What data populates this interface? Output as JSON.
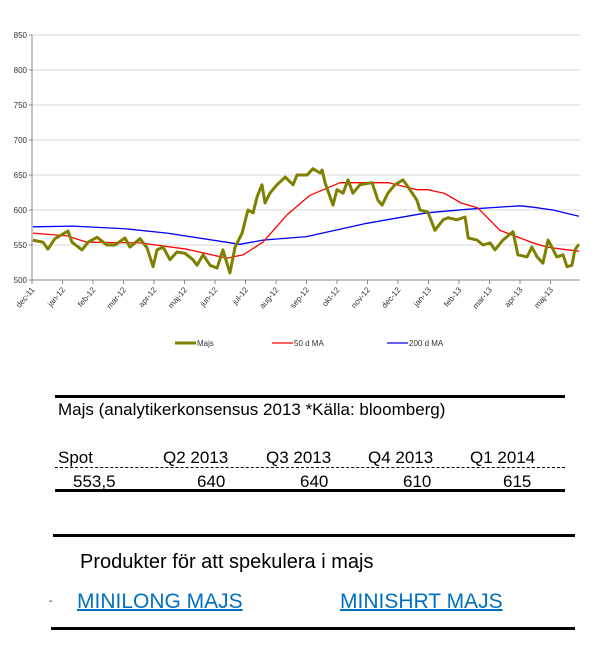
{
  "chart_data": {
    "type": "line",
    "title": "",
    "xlabel": "",
    "ylabel": "",
    "ylim": [
      500,
      850
    ],
    "yticks": [
      500,
      550,
      600,
      650,
      700,
      750,
      800,
      850
    ],
    "x_unit": "months since dec-11",
    "xtick_labels": [
      "dec-11",
      "jan-12",
      "feb-12",
      "mar-12",
      "apr-12",
      "maj-12",
      "jun-12",
      "jul-12",
      "aug-12",
      "sep-12",
      "okt-12",
      "nov-12",
      "dec-12",
      "jan-13",
      "feb-13",
      "mar-13",
      "apr-13",
      "maj-13"
    ],
    "grid": true,
    "legend_position": "bottom",
    "series": [
      {
        "name": "Majs",
        "color": "#808000",
        "width": 3,
        "x": [
          0.03,
          0.36,
          0.52,
          0.75,
          1.18,
          1.31,
          1.64,
          1.84,
          2.13,
          2.46,
          2.72,
          3.05,
          3.21,
          3.54,
          3.77,
          3.97,
          4.1,
          4.3,
          4.52,
          4.75,
          5.02,
          5.28,
          5.41,
          5.61,
          5.84,
          6.07,
          6.26,
          6.49,
          6.66,
          6.89,
          7.08,
          7.25,
          7.38,
          7.54,
          7.64,
          7.8,
          8.03,
          8.3,
          8.56,
          8.69,
          9.02,
          9.21,
          9.44,
          9.51,
          9.61,
          9.87,
          10.0,
          10.2,
          10.36,
          10.52,
          10.75,
          11.15,
          11.34,
          11.48,
          11.67,
          11.9,
          12.16,
          12.33,
          12.62,
          12.72,
          12.98,
          13.21,
          13.48,
          13.64,
          13.93,
          14.2,
          14.3,
          14.59,
          14.79,
          15.02,
          15.18,
          15.44,
          15.77,
          15.93,
          16.23,
          16.39,
          16.56,
          16.75,
          16.92,
          17.21,
          17.41,
          17.54,
          17.7,
          17.8,
          17.93
        ],
        "y": [
          557,
          554,
          544,
          559,
          570,
          554,
          543,
          554,
          561,
          550,
          550,
          560,
          547,
          559,
          546,
          519,
          543,
          547,
          529,
          540,
          538,
          529,
          521,
          536,
          521,
          517,
          543,
          510,
          547,
          567,
          600,
          596,
          619,
          636,
          610,
          624,
          636,
          647,
          636,
          650,
          650,
          659,
          653,
          657,
          639,
          607,
          629,
          624,
          643,
          624,
          636,
          639,
          614,
          607,
          624,
          636,
          643,
          633,
          614,
          600,
          597,
          571,
          586,
          589,
          586,
          590,
          560,
          557,
          550,
          553,
          543,
          557,
          569,
          536,
          533,
          547,
          533,
          524,
          557,
          533,
          536,
          519,
          521,
          543,
          551
        ]
      },
      {
        "name": "50 d MA",
        "color": "#ff0000",
        "width": 1.3,
        "x": [
          0.03,
          1.15,
          1.8,
          3.54,
          5.08,
          6.39,
          6.92,
          7.57,
          8.36,
          9.11,
          10.1,
          11.7,
          12.62,
          12.98,
          13.51,
          14.07,
          14.62,
          15.34,
          16.43,
          16.89,
          17.93
        ],
        "y": [
          567,
          563,
          554,
          553,
          544,
          531,
          536,
          554,
          593,
          621,
          639,
          639,
          629,
          629,
          624,
          610,
          603,
          571,
          553,
          547,
          541
        ]
      },
      {
        "name": "200 d MA",
        "color": "#0000ff",
        "width": 1.3,
        "x": [
          0.03,
          1.34,
          3.11,
          4.43,
          6.82,
          7.57,
          9.0,
          10.98,
          12.95,
          14.26,
          16.0,
          16.43,
          17.08,
          17.93
        ],
        "y": [
          576,
          577,
          573,
          567,
          551,
          557,
          562,
          581,
          596,
          601,
          606,
          604,
          600,
          591
        ]
      }
    ]
  },
  "table": {
    "title": "Majs (analytikerkonsensus 2013 *Källa: bloomberg)",
    "headers": [
      "Spot",
      "Q2 2013",
      "Q3 2013",
      "Q4 2013",
      "Q1 2014"
    ],
    "values": [
      "553,5",
      "640",
      "640",
      "610",
      "615"
    ]
  },
  "products": {
    "heading": "Produkter för att spekulera i majs",
    "bullet": "-",
    "links": [
      "MINILONG MAJS",
      "MINISHRT MAJS"
    ]
  }
}
